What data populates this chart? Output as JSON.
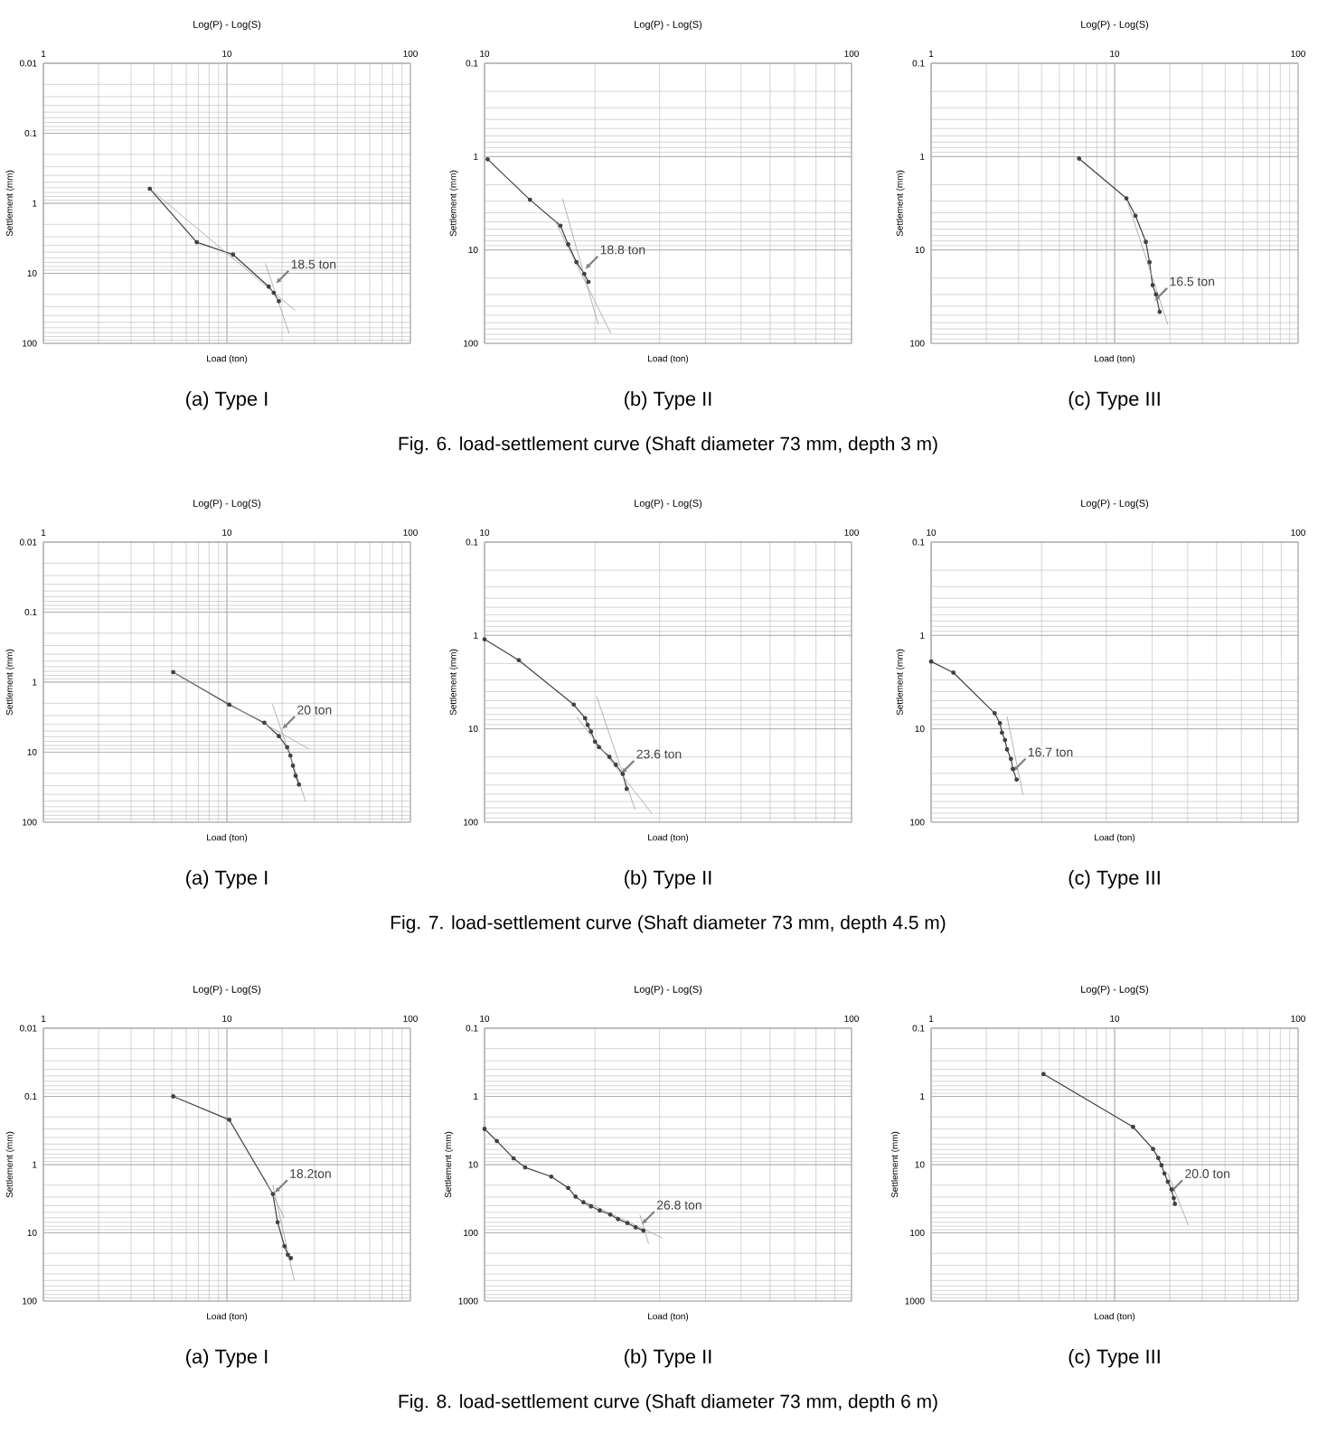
{
  "chart_data": [
    {
      "type": "line",
      "title": "Log(P) - Log(S)",
      "xlabel": "Load (ton)",
      "ylabel": "Settlement (mm)",
      "log": "xy",
      "grid": true,
      "marker": "circle",
      "tick_labels": true,
      "xlim": [
        1,
        100
      ],
      "ylim": [
        100,
        0.01
      ],
      "xticks": [
        1,
        10,
        100
      ],
      "yticks": [
        0.01,
        0.1,
        1,
        10,
        100
      ],
      "series": [
        {
          "color": "#404040",
          "x": [
            3.8,
            6.85,
            10.8,
            16.9,
            18,
            19.2
          ],
          "values": [
            0.62,
            3.6,
            5.4,
            15.5,
            19,
            25
          ]
        },
        {
          "type": "line",
          "marker": "none",
          "color": "#a0a0a0",
          "x": [
            3.8,
            23.6
          ],
          "values": [
            0.62,
            34
          ]
        },
        {
          "type": "line",
          "marker": "none",
          "color": "#a0a0a0",
          "x": [
            16.2,
            21.8
          ],
          "values": [
            7.2,
            72
          ]
        }
      ],
      "annotations": [
        {
          "text": "18.5 ton",
          "x": 18.5,
          "y": 14
        },
        "(a) Type I"
      ]
    },
    {
      "type": "line",
      "title": "Log(P) - Log(S)",
      "xlabel": "Load (ton)",
      "ylabel": "Settlement (mm)",
      "log": "xy",
      "grid": true,
      "marker": "circle",
      "xlim": [
        10,
        100
      ],
      "ylim": [
        100,
        0.1
      ],
      "xticks": [
        10,
        100
      ],
      "yticks": [
        0.1,
        1,
        10,
        100
      ],
      "series": [
        {
          "color": "#404040",
          "x": [
            10.2,
            13.3,
            16.1,
            16.9,
            17.8,
            18.7,
            19.2
          ],
          "values": [
            1.07,
            2.9,
            5.5,
            8.7,
            13.5,
            18,
            22
          ]
        },
        {
          "type": "line",
          "marker": "none",
          "color": "#a0a0a0",
          "x": [
            15.5,
            22.1
          ],
          "values": [
            4.7,
            79
          ]
        },
        {
          "type": "line",
          "marker": "none",
          "color": "#a0a0a0",
          "x": [
            16.3,
            20.4
          ],
          "values": [
            2.8,
            63
          ]
        }
      ],
      "annotations": [
        {
          "text": "18.8 ton",
          "x": 18.8,
          "y": 16
        },
        "(b) Type II",
        "Fig. 6. load-settlement curve (Shaft diameter 73 mm, depth 3 m)"
      ]
    },
    {
      "type": "line",
      "title": "Log(P) - Log(S)",
      "xlabel": "Load (ton)",
      "ylabel": "Settlement (mm)",
      "log": "xy",
      "grid": true,
      "marker": "circle",
      "xlim": [
        1,
        100
      ],
      "ylim": [
        100,
        0.1
      ],
      "xticks": [
        1,
        10,
        100
      ],
      "yticks": [
        0.1,
        1,
        10,
        100
      ],
      "series": [
        {
          "color": "#404040",
          "x": [
            6.4,
            11.6,
            13,
            14.8,
            15.5,
            16.1,
            16.8,
            17.6
          ],
          "values": [
            1.05,
            2.8,
            4.3,
            8.2,
            13.5,
            23.8,
            30,
            46
          ]
        },
        {
          "type": "line",
          "marker": "none",
          "color": "#a0a0a0",
          "x": [
            11.6,
            19.5
          ],
          "values": [
            2.8,
            63
          ]
        }
      ],
      "annotations": [
        {
          "text": "16.5 ton",
          "x": 16.5,
          "y": 35
        },
        "(c) Type III"
      ]
    },
    {
      "type": "line",
      "title": "Log(P) - Log(S)",
      "xlabel": "Load (ton)",
      "ylabel": "Settlement (mm)",
      "log": "xy",
      "grid": true,
      "marker": "circle",
      "xlim": [
        1,
        100
      ],
      "ylim": [
        100,
        0.01
      ],
      "xticks": [
        1,
        10,
        100
      ],
      "yticks": [
        0.01,
        0.1,
        1,
        10,
        100
      ],
      "series": [
        {
          "color": "#404040",
          "x": [
            5.1,
            10.3,
            16,
            19.2,
            21.3,
            22.2,
            22.9,
            23.7,
            24.7
          ],
          "values": [
            0.72,
            2.1,
            3.8,
            5.9,
            8.5,
            11.2,
            15.6,
            21.8,
            29
          ]
        },
        {
          "type": "line",
          "marker": "none",
          "color": "#a0a0a0",
          "x": [
            5.1,
            28
          ],
          "values": [
            0.72,
            9
          ]
        },
        {
          "type": "line",
          "marker": "none",
          "color": "#a0a0a0",
          "x": [
            17.7,
            26.9
          ],
          "values": [
            2.06,
            51
          ]
        }
      ],
      "annotations": [
        {
          "text": "20 ton",
          "x": 20,
          "y": 4.7
        },
        "(a) Type I"
      ]
    },
    {
      "type": "line",
      "title": "Log(P) - Log(S)",
      "xlabel": "Load (ton)",
      "ylabel": "Settlement (mm)",
      "log": "xy",
      "grid": true,
      "marker": "circle",
      "xlim": [
        10,
        100
      ],
      "ylim": [
        100,
        0.1
      ],
      "xticks": [
        10,
        100
      ],
      "yticks": [
        0.1,
        1,
        10,
        100
      ],
      "series": [
        {
          "color": "#404040",
          "x": [
            10,
            12.4,
            17.5,
            18.8,
            19.1,
            19.5,
            20,
            20.5,
            21.9,
            22.8,
            23.8,
            24.4
          ],
          "values": [
            1.1,
            1.84,
            5.5,
            7.7,
            9.1,
            10.7,
            13.7,
            15.7,
            20,
            24.3,
            30.5,
            44
          ]
        },
        {
          "type": "line",
          "marker": "none",
          "color": "#a0a0a0",
          "x": [
            17.8,
            28.6
          ],
          "values": [
            7.4,
            81
          ]
        },
        {
          "type": "line",
          "marker": "none",
          "color": "#a0a0a0",
          "x": [
            20.2,
            25.7
          ],
          "values": [
            4.5,
            73
          ]
        }
      ],
      "annotations": [
        {
          "text": "23.6 ton",
          "x": 23.6,
          "y": 30
        },
        "(b) Type II",
        "Fig. 7. load-settlement curve (Shaft diameter 73 mm, depth 4.5 m)"
      ]
    },
    {
      "type": "line",
      "title": "Log(P) - Log(S)",
      "xlabel": "Load (ton)",
      "ylabel": "Settlement (mm)",
      "log": "xy",
      "grid": true,
      "marker": "circle",
      "xlim": [
        10,
        100
      ],
      "ylim": [
        100,
        0.1
      ],
      "xticks": [
        10,
        100
      ],
      "yticks": [
        0.1,
        1,
        10,
        100
      ],
      "series": [
        {
          "color": "#404040",
          "x": [
            10,
            11.5,
            14.9,
            15.4,
            15.6,
            15.9,
            16.1,
            16.5,
            16.7,
            17.1
          ],
          "values": [
            1.9,
            2.5,
            6.8,
            8.7,
            11,
            13.2,
            16.6,
            21,
            27,
            35
          ]
        },
        {
          "type": "line",
          "marker": "none",
          "color": "#a0a0a0",
          "x": [
            16.1,
            17.8
          ],
          "values": [
            7.4,
            51
          ]
        }
      ],
      "annotations": [
        {
          "text": "16.7 ton",
          "x": 16.7,
          "y": 28.6
        },
        "(c) Type III"
      ]
    },
    {
      "type": "line",
      "title": "Log(P) - Log(S)",
      "xlabel": "Load (ton)",
      "ylabel": "Settlement (mm)",
      "log": "xy",
      "grid": true,
      "marker": "circle",
      "xlim": [
        1,
        100
      ],
      "ylim": [
        100,
        0.01
      ],
      "xticks": [
        1,
        10,
        100
      ],
      "yticks": [
        0.01,
        0.1,
        1,
        10,
        100
      ],
      "series": [
        {
          "color": "#404040",
          "x": [
            5.1,
            10.3,
            17.8,
            18.9,
            20.6,
            21.5,
            22.3
          ],
          "values": [
            0.1,
            0.22,
            2.7,
            7,
            15.7,
            21,
            23.5
          ]
        },
        {
          "type": "line",
          "marker": "none",
          "color": "#a0a0a0",
          "x": [
            16,
            20.6
          ],
          "values": [
            1.55,
            6.1
          ]
        },
        {
          "type": "line",
          "marker": "none",
          "color": "#a0a0a0",
          "x": [
            17.8,
            23.3
          ],
          "values": [
            2,
            50
          ]
        }
      ],
      "annotations": [
        {
          "text": "18.2ton",
          "x": 18.2,
          "y": 2.6
        },
        "(a) Type I"
      ]
    },
    {
      "type": "line",
      "title": "Log(P) - Log(S)",
      "xlabel": "Load (ton)",
      "ylabel": "Settlement (mm)",
      "log": "xy",
      "grid": true,
      "marker": "circle",
      "xlim": [
        10,
        100
      ],
      "ylim": [
        1000,
        0.1
      ],
      "xticks": [
        10,
        100
      ],
      "yticks": [
        0.1,
        1,
        10,
        100,
        1000
      ],
      "series": [
        {
          "color": "#404040",
          "x": [
            10,
            10.8,
            12,
            12.9,
            15.2,
            16.9,
            17.7,
            18.6,
            19.5,
            20.6,
            22,
            23.1,
            24.5,
            25.8,
            27.1
          ],
          "values": [
            3,
            4.5,
            8.1,
            11,
            15,
            22,
            29.5,
            35.6,
            41,
            47,
            54,
            63,
            72,
            83,
            93
          ]
        },
        {
          "type": "line",
          "marker": "none",
          "color": "#a0a0a0",
          "x": [
            19,
            30.5
          ],
          "values": [
            35.6,
            119
          ]
        },
        {
          "type": "line",
          "marker": "none",
          "color": "#a0a0a0",
          "x": [
            26.5,
            28
          ],
          "values": [
            54,
            145
          ]
        }
      ],
      "annotations": [
        {
          "text": "26.8 ton",
          "x": 26.8,
          "y": 75
        },
        "(b) Type II",
        "Fig. 8. load-settlement curve (Shaft diameter 73 mm, depth 6 m)"
      ]
    },
    {
      "type": "line",
      "title": "Log(P) - Log(S)",
      "xlabel": "Load (ton)",
      "ylabel": "Settlement (mm)",
      "log": "xy",
      "grid": true,
      "marker": "circle",
      "xlim": [
        1,
        100
      ],
      "ylim": [
        1000,
        0.1
      ],
      "xticks": [
        1,
        10,
        100
      ],
      "yticks": [
        0.1,
        1,
        10,
        100,
        1000
      ],
      "series": [
        {
          "color": "#404040",
          "x": [
            4.1,
            12.6,
            16.2,
            17.3,
            18,
            18.7,
            19.5,
            20.4,
            21,
            21.3
          ],
          "values": [
            0.47,
            2.8,
            5.9,
            8,
            10.2,
            13.5,
            17.8,
            23,
            31,
            37.6
          ]
        },
        {
          "type": "line",
          "marker": "none",
          "color": "#a0a0a0",
          "x": [
            19.5,
            25.2
          ],
          "values": [
            13.5,
            77
          ]
        }
      ],
      "annotations": [
        {
          "text": "20.0 ton",
          "x": 20,
          "y": 26
        },
        "(c) Type III"
      ]
    }
  ]
}
